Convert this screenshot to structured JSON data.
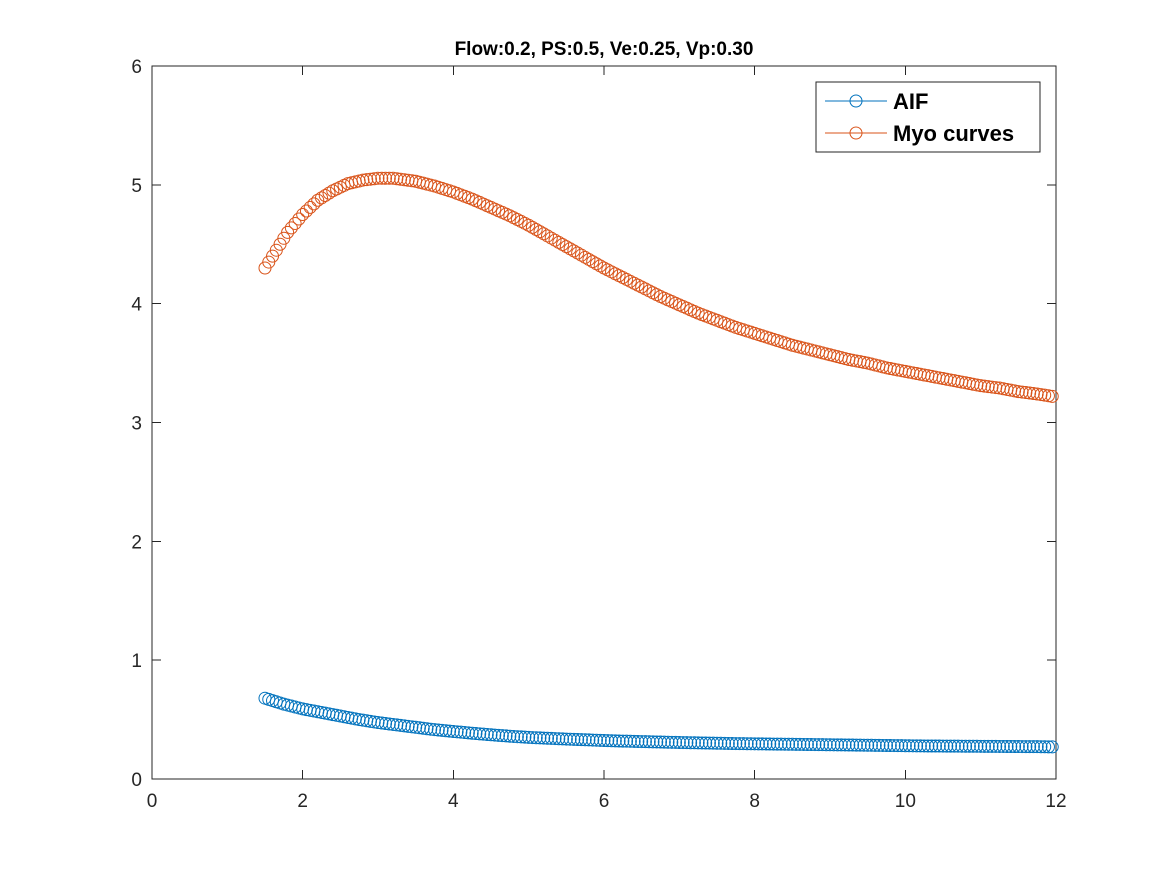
{
  "chart_data": {
    "type": "scatter",
    "title": "Flow:0.2, PS:0.5, Ve:0.25, Vp:0.30",
    "xlabel": "",
    "ylabel": "",
    "xlim": [
      0,
      12
    ],
    "ylim": [
      0,
      6
    ],
    "xticks": [
      0,
      2,
      4,
      6,
      8,
      10,
      12
    ],
    "yticks": [
      0,
      1,
      2,
      3,
      4,
      5,
      6
    ],
    "x_tick_labels": [
      "0",
      "2",
      "4",
      "6",
      "8",
      "10",
      "12"
    ],
    "y_tick_labels": [
      "0",
      "1",
      "2",
      "3",
      "4",
      "5",
      "6"
    ],
    "grid": false,
    "legend_position": "top-right",
    "marker": "circle",
    "series": [
      {
        "name": "AIF",
        "color": "#0072BD",
        "x": [
          1.5,
          1.75,
          2.0,
          2.25,
          2.5,
          2.75,
          3.0,
          3.25,
          3.5,
          3.75,
          4.0,
          4.25,
          4.5,
          4.75,
          5.0,
          5.25,
          5.5,
          5.75,
          6.0,
          6.25,
          6.5,
          6.75,
          7.0,
          7.25,
          7.5,
          7.75,
          8.0,
          8.25,
          8.5,
          8.75,
          9.0,
          9.25,
          9.5,
          9.75,
          10.0,
          10.25,
          10.5,
          10.75,
          11.0,
          11.25,
          11.5,
          11.75,
          11.95
        ],
        "y": [
          0.68,
          0.63,
          0.59,
          0.56,
          0.53,
          0.5,
          0.475,
          0.455,
          0.435,
          0.415,
          0.4,
          0.385,
          0.372,
          0.36,
          0.35,
          0.343,
          0.336,
          0.33,
          0.324,
          0.319,
          0.315,
          0.311,
          0.307,
          0.304,
          0.301,
          0.298,
          0.296,
          0.294,
          0.292,
          0.29,
          0.288,
          0.286,
          0.284,
          0.282,
          0.28,
          0.278,
          0.277,
          0.276,
          0.275,
          0.274,
          0.273,
          0.272,
          0.27
        ]
      },
      {
        "name": "Myo curves",
        "color": "#D95319",
        "x": [
          1.5,
          1.65,
          1.8,
          2.0,
          2.2,
          2.4,
          2.6,
          2.8,
          3.0,
          3.2,
          3.5,
          3.75,
          4.0,
          4.25,
          4.5,
          4.75,
          5.0,
          5.25,
          5.5,
          5.75,
          6.0,
          6.25,
          6.5,
          6.75,
          7.0,
          7.25,
          7.5,
          7.75,
          8.0,
          8.25,
          8.5,
          8.75,
          9.0,
          9.25,
          9.5,
          9.75,
          10.0,
          10.25,
          10.5,
          10.75,
          11.0,
          11.25,
          11.5,
          11.75,
          11.95
        ],
        "y": [
          4.3,
          4.45,
          4.6,
          4.75,
          4.87,
          4.95,
          5.01,
          5.04,
          5.055,
          5.055,
          5.03,
          4.99,
          4.94,
          4.88,
          4.81,
          4.74,
          4.66,
          4.57,
          4.48,
          4.39,
          4.3,
          4.22,
          4.14,
          4.06,
          3.99,
          3.92,
          3.86,
          3.8,
          3.75,
          3.7,
          3.65,
          3.61,
          3.57,
          3.53,
          3.5,
          3.46,
          3.43,
          3.4,
          3.37,
          3.34,
          3.31,
          3.29,
          3.26,
          3.24,
          3.22
        ]
      }
    ]
  }
}
